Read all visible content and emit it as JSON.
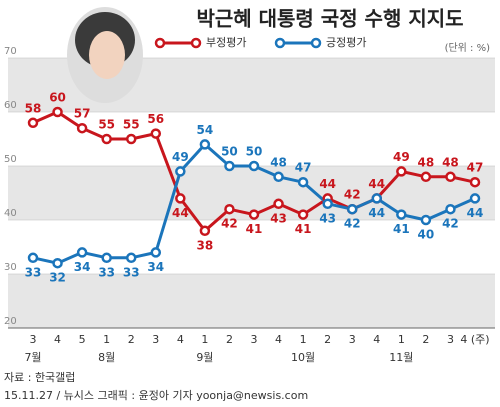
{
  "chart_data": {
    "type": "line",
    "title": "박근혜 대통령 국정 수행 지지도",
    "unit": "(단위 : %)",
    "categories": [
      "3",
      "4",
      "5",
      "1",
      "2",
      "3",
      "4",
      "1",
      "2",
      "3",
      "4",
      "1",
      "2",
      "3",
      "4",
      "1",
      "2",
      "3",
      "4 (주)"
    ],
    "months": [
      {
        "index": 0,
        "label": "7월"
      },
      {
        "index": 3,
        "label": "8월"
      },
      {
        "index": 7,
        "label": "9월"
      },
      {
        "index": 11,
        "label": "10월"
      },
      {
        "index": 15,
        "label": "11월"
      }
    ],
    "series": [
      {
        "name": "부정평가",
        "color": "#c8161d",
        "values": [
          58,
          60,
          57,
          55,
          55,
          56,
          44,
          38,
          42,
          41,
          43,
          41,
          44,
          42,
          44,
          49,
          48,
          48,
          47
        ]
      },
      {
        "name": "긍정평가",
        "color": "#1b75bb",
        "values": [
          33,
          32,
          34,
          33,
          33,
          34,
          49,
          54,
          50,
          50,
          48,
          47,
          43,
          42,
          44,
          41,
          40,
          42,
          44
        ]
      }
    ],
    "ylim": [
      20,
      70
    ],
    "yticks": [
      20,
      30,
      40,
      50,
      60,
      70
    ],
    "source": "자료 : 한국갤럽",
    "credit": "15.11.27 / 뉴시스 그래픽 : 윤정아 기자 yoonja@newsis.com"
  }
}
